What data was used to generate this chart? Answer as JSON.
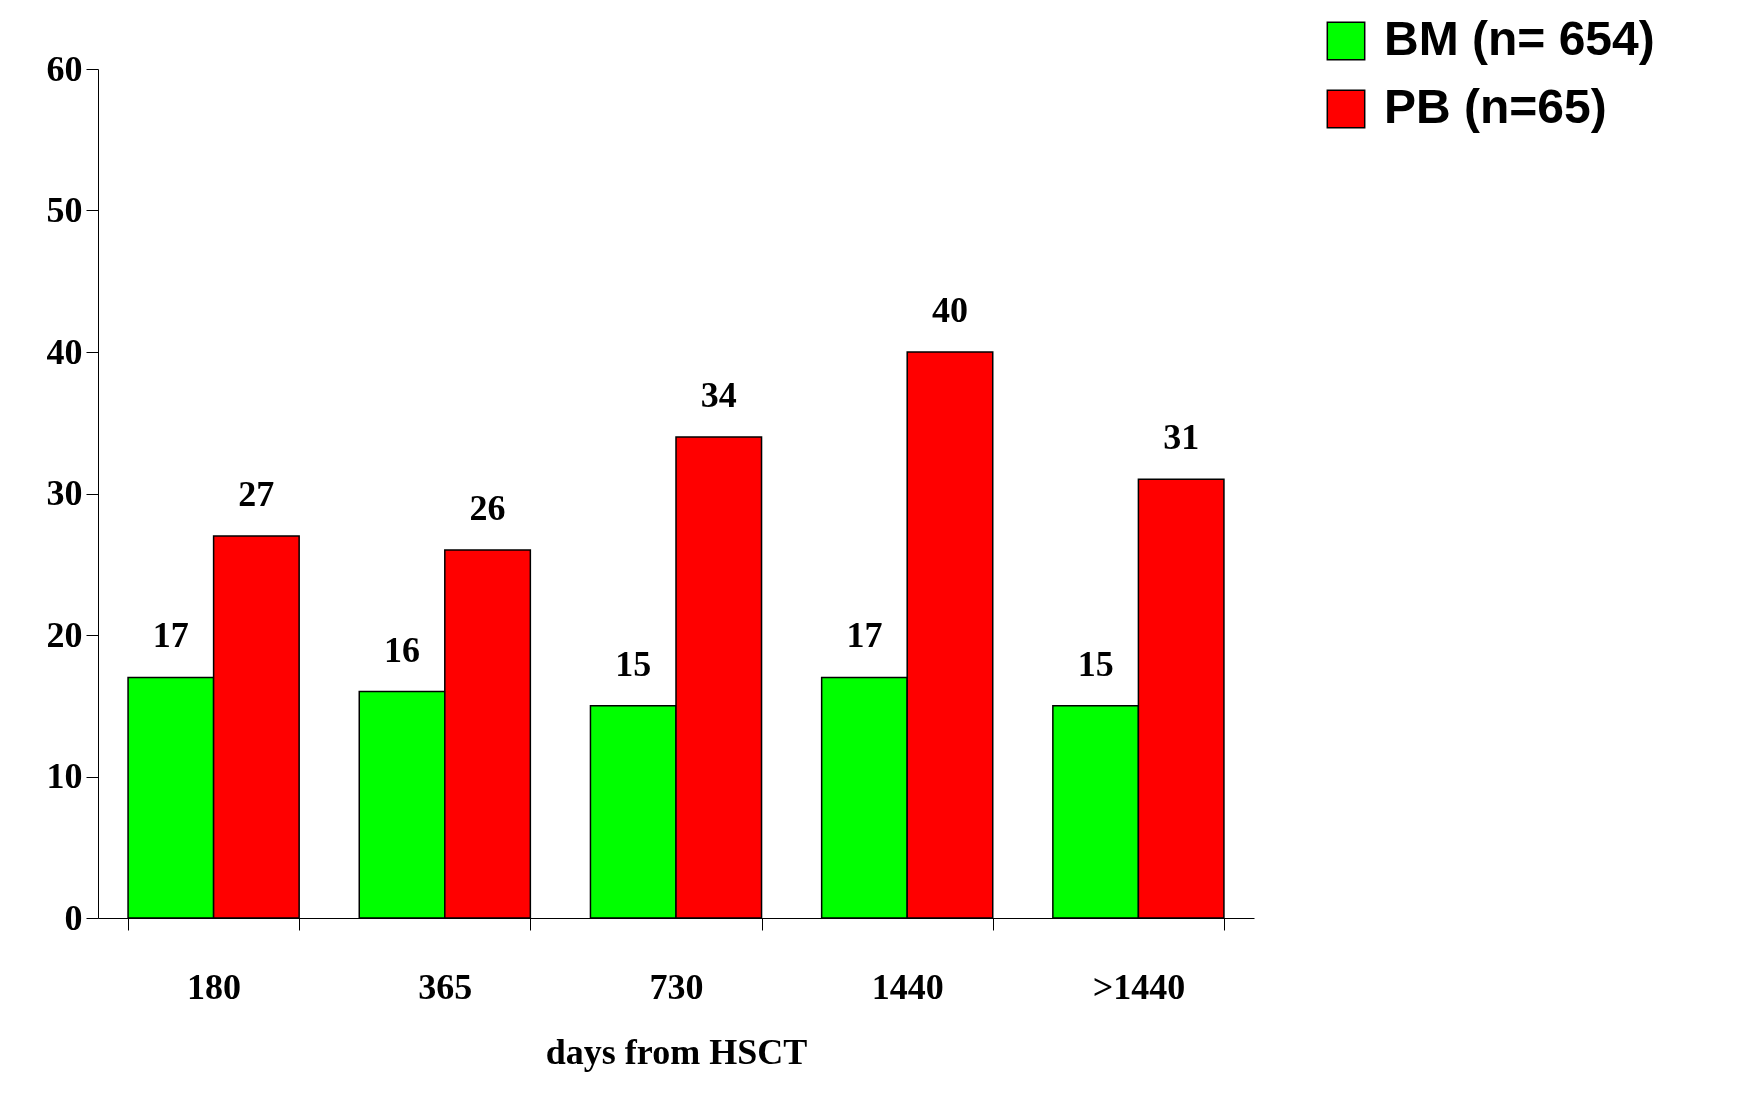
{
  "chart_data": {
    "type": "bar",
    "xlabel": "days from HSCT",
    "categories": [
      "180",
      "365",
      "730",
      "1440",
      ">1440"
    ],
    "series": [
      {
        "name": "BM (n= 654)",
        "color": "#00ff00",
        "values": [
          17,
          16,
          15,
          17,
          15
        ]
      },
      {
        "name": "PB (n=65)",
        "color": "#ff0000",
        "values": [
          27,
          26,
          34,
          40,
          31
        ]
      }
    ],
    "ylim": [
      0,
      60
    ],
    "yticks": [
      0,
      10,
      20,
      30,
      40,
      50,
      60
    ],
    "grid": false,
    "legend": "top right",
    "data_labels": true
  }
}
